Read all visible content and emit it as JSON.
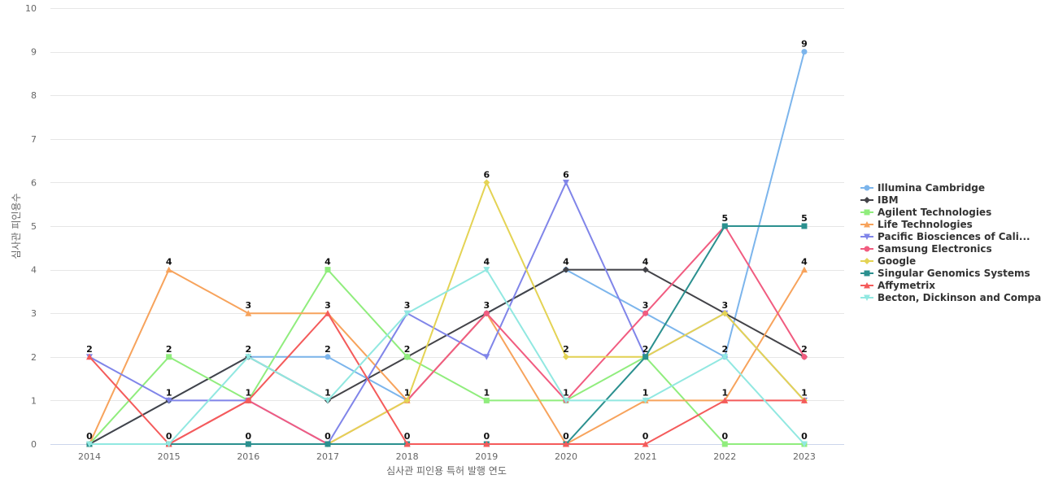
{
  "chart_data": {
    "type": "line",
    "title": "",
    "xlabel": "심사관 피인용 특허 발행 연도",
    "ylabel": "심사관 피인용수",
    "x": [
      "2014",
      "2015",
      "2016",
      "2017",
      "2018",
      "2019",
      "2020",
      "2021",
      "2022",
      "2023"
    ],
    "ylim": [
      0,
      10
    ],
    "yticks": [
      0,
      1,
      2,
      3,
      4,
      5,
      6,
      7,
      8,
      9,
      10
    ],
    "grid": true,
    "legend_position": "right",
    "series": [
      {
        "name": "Illumina Cambridge",
        "color": "#7cb5ec",
        "marker": "circle",
        "values": [
          0,
          1,
          2,
          2,
          1,
          3,
          4,
          3,
          2,
          9
        ]
      },
      {
        "name": "IBM",
        "color": "#434348",
        "marker": "diamond",
        "values": [
          0,
          1,
          2,
          1,
          2,
          3,
          4,
          4,
          3,
          2
        ]
      },
      {
        "name": "Agilent Technologies",
        "color": "#90ed7d",
        "marker": "square",
        "values": [
          0,
          2,
          1,
          4,
          2,
          1,
          1,
          2,
          0,
          0
        ]
      },
      {
        "name": "Life Technologies",
        "color": "#f7a35c",
        "marker": "triangle",
        "values": [
          0,
          4,
          3,
          3,
          1,
          3,
          0,
          1,
          1,
          4
        ]
      },
      {
        "name": "Pacific Biosciences of Cali...",
        "color": "#8085e9",
        "marker": "triangle-down",
        "values": [
          2,
          1,
          1,
          0,
          3,
          2,
          6,
          2,
          3,
          1
        ]
      },
      {
        "name": "Samsung Electronics",
        "color": "#f15c80",
        "marker": "circle",
        "values": [
          0,
          0,
          1,
          0,
          1,
          3,
          1,
          3,
          5,
          2
        ]
      },
      {
        "name": "Google",
        "color": "#e4d354",
        "marker": "diamond",
        "values": [
          0,
          0,
          0,
          0,
          1,
          6,
          2,
          2,
          3,
          1
        ]
      },
      {
        "name": "Singular Genomics Systems",
        "color": "#2b908f",
        "marker": "square",
        "values": [
          0,
          0,
          0,
          0,
          0,
          0,
          0,
          2,
          5,
          5
        ]
      },
      {
        "name": "Affymetrix",
        "color": "#f45b5b",
        "marker": "triangle",
        "values": [
          2,
          0,
          1,
          3,
          0,
          0,
          0,
          0,
          1,
          1
        ]
      },
      {
        "name": "Becton, Dickinson and Compa...",
        "color": "#91e8e1",
        "marker": "triangle-down",
        "values": [
          0,
          0,
          2,
          1,
          3,
          4,
          1,
          1,
          2,
          0
        ]
      }
    ],
    "data_labels": [
      {
        "x": "2014",
        "value": 2
      },
      {
        "x": "2014",
        "value": 0
      },
      {
        "x": "2015",
        "value": 4
      },
      {
        "x": "2015",
        "value": 2
      },
      {
        "x": "2015",
        "value": 1
      },
      {
        "x": "2015",
        "value": 0
      },
      {
        "x": "2016",
        "value": 3
      },
      {
        "x": "2016",
        "value": 2
      },
      {
        "x": "2016",
        "value": 1
      },
      {
        "x": "2016",
        "value": 0
      },
      {
        "x": "2017",
        "value": 4
      },
      {
        "x": "2017",
        "value": 3
      },
      {
        "x": "2017",
        "value": 2
      },
      {
        "x": "2017",
        "value": 1
      },
      {
        "x": "2017",
        "value": 0
      },
      {
        "x": "2018",
        "value": 3
      },
      {
        "x": "2018",
        "value": 2
      },
      {
        "x": "2018",
        "value": 1
      },
      {
        "x": "2018",
        "value": 0
      },
      {
        "x": "2019",
        "value": 6
      },
      {
        "x": "2019",
        "value": 4
      },
      {
        "x": "2019",
        "value": 3
      },
      {
        "x": "2019",
        "value": 1
      },
      {
        "x": "2019",
        "value": 0
      },
      {
        "x": "2020",
        "value": 6
      },
      {
        "x": "2020",
        "value": 4
      },
      {
        "x": "2020",
        "value": 2
      },
      {
        "x": "2020",
        "value": 1
      },
      {
        "x": "2020",
        "value": 0
      },
      {
        "x": "2021",
        "value": 4
      },
      {
        "x": "2021",
        "value": 3
      },
      {
        "x": "2021",
        "value": 2
      },
      {
        "x": "2021",
        "value": 1
      },
      {
        "x": "2021",
        "value": 0
      },
      {
        "x": "2022",
        "value": 5
      },
      {
        "x": "2022",
        "value": 3
      },
      {
        "x": "2022",
        "value": 2
      },
      {
        "x": "2022",
        "value": 1
      },
      {
        "x": "2022",
        "value": 0
      },
      {
        "x": "2023",
        "value": 9
      },
      {
        "x": "2023",
        "value": 5
      },
      {
        "x": "2023",
        "value": 4
      },
      {
        "x": "2023",
        "value": 2
      },
      {
        "x": "2023",
        "value": 1
      },
      {
        "x": "2023",
        "value": 0
      }
    ]
  }
}
